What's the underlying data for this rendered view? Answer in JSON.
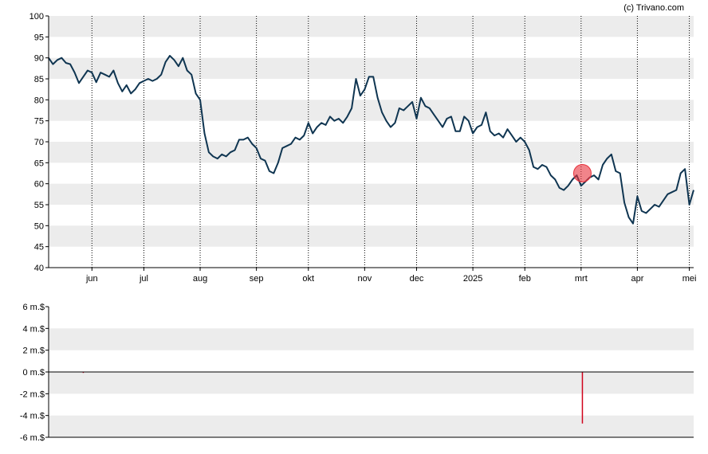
{
  "watermark": "(c) Trivano.com",
  "colors": {
    "band": "#ececec",
    "line": "#0f3551",
    "marker": "#e8323c",
    "volume_bar": "#d0021b",
    "axis": "#000000",
    "grid": "#000000"
  },
  "chart_data": [
    {
      "type": "line",
      "title": "",
      "xlabel": "",
      "ylabel": "",
      "ylim": [
        40,
        100
      ],
      "y_ticks": [
        40,
        45,
        50,
        55,
        60,
        65,
        70,
        75,
        80,
        85,
        90,
        95,
        100
      ],
      "grid": "vertical dotted at month starts, alternating horizontal bands",
      "x_ticks": [
        {
          "label": "jun",
          "t": 10
        },
        {
          "label": "jul",
          "t": 22
        },
        {
          "label": "aug",
          "t": 35
        },
        {
          "label": "sep",
          "t": 48
        },
        {
          "label": "okt",
          "t": 60
        },
        {
          "label": "nov",
          "t": 73
        },
        {
          "label": "dec",
          "t": 85
        },
        {
          "label": "2025",
          "t": 98
        },
        {
          "label": "feb",
          "t": 110
        },
        {
          "label": "mrt",
          "t": 123
        },
        {
          "label": "apr",
          "t": 136
        },
        {
          "label": "mei",
          "t": 148
        }
      ],
      "series": [
        {
          "values": [
            [
              0,
              90.0
            ],
            [
              1,
              88.5
            ],
            [
              2,
              89.5
            ],
            [
              3,
              90.0
            ],
            [
              4,
              88.8
            ],
            [
              5,
              88.5
            ],
            [
              6,
              86.5
            ],
            [
              7,
              84.0
            ],
            [
              8,
              85.5
            ],
            [
              9,
              87.0
            ],
            [
              10,
              86.5
            ],
            [
              11,
              84.2
            ],
            [
              12,
              86.5
            ],
            [
              13,
              86.0
            ],
            [
              14,
              85.5
            ],
            [
              15,
              87.0
            ],
            [
              16,
              84.0
            ],
            [
              17,
              82.0
            ],
            [
              18,
              83.5
            ],
            [
              19,
              81.5
            ],
            [
              20,
              82.5
            ],
            [
              21,
              84.0
            ],
            [
              22,
              84.5
            ],
            [
              23,
              85.0
            ],
            [
              24,
              84.5
            ],
            [
              25,
              85.0
            ],
            [
              26,
              86.0
            ],
            [
              27,
              89.0
            ],
            [
              28,
              90.5
            ],
            [
              29,
              89.5
            ],
            [
              30,
              88.0
            ],
            [
              31,
              90.0
            ],
            [
              32,
              87.0
            ],
            [
              33,
              86.0
            ],
            [
              34,
              81.5
            ],
            [
              35,
              80.0
            ],
            [
              36,
              72.0
            ],
            [
              37,
              67.5
            ],
            [
              38,
              66.5
            ],
            [
              39,
              66.0
            ],
            [
              40,
              67.0
            ],
            [
              41,
              66.5
            ],
            [
              42,
              67.5
            ],
            [
              43,
              68.0
            ],
            [
              44,
              70.5
            ],
            [
              45,
              70.5
            ],
            [
              46,
              71.0
            ],
            [
              47,
              69.5
            ],
            [
              48,
              68.5
            ],
            [
              49,
              66.0
            ],
            [
              50,
              65.5
            ],
            [
              51,
              63.0
            ],
            [
              52,
              62.5
            ],
            [
              53,
              65.0
            ],
            [
              54,
              68.5
            ],
            [
              55,
              69.0
            ],
            [
              56,
              69.5
            ],
            [
              57,
              71.0
            ],
            [
              58,
              70.5
            ],
            [
              59,
              71.5
            ],
            [
              60,
              74.5
            ],
            [
              61,
              72.0
            ],
            [
              62,
              73.5
            ],
            [
              63,
              74.5
            ],
            [
              64,
              74.0
            ],
            [
              65,
              76.0
            ],
            [
              66,
              75.0
            ],
            [
              67,
              75.5
            ],
            [
              68,
              74.5
            ],
            [
              69,
              76.0
            ],
            [
              70,
              78.0
            ],
            [
              71,
              85.0
            ],
            [
              72,
              81.0
            ],
            [
              73,
              82.5
            ],
            [
              74,
              85.5
            ],
            [
              75,
              85.5
            ],
            [
              76,
              80.5
            ],
            [
              77,
              77.0
            ],
            [
              78,
              75.0
            ],
            [
              79,
              73.5
            ],
            [
              80,
              74.5
            ],
            [
              81,
              78.0
            ],
            [
              82,
              77.5
            ],
            [
              83,
              78.5
            ],
            [
              84,
              79.5
            ],
            [
              85,
              75.5
            ],
            [
              86,
              80.5
            ],
            [
              87,
              78.5
            ],
            [
              88,
              78.0
            ],
            [
              89,
              76.5
            ],
            [
              90,
              75.0
            ],
            [
              91,
              73.5
            ],
            [
              92,
              75.5
            ],
            [
              93,
              76.0
            ],
            [
              94,
              72.5
            ],
            [
              95,
              72.5
            ],
            [
              96,
              76.0
            ],
            [
              97,
              75.0
            ],
            [
              98,
              72.0
            ],
            [
              99,
              73.5
            ],
            [
              100,
              74.0
            ],
            [
              101,
              77.0
            ],
            [
              102,
              72.5
            ],
            [
              103,
              71.5
            ],
            [
              104,
              72.0
            ],
            [
              105,
              71.0
            ],
            [
              106,
              73.0
            ],
            [
              107,
              71.5
            ],
            [
              108,
              70.0
            ],
            [
              109,
              71.0
            ],
            [
              110,
              70.0
            ],
            [
              111,
              68.0
            ],
            [
              112,
              64.0
            ],
            [
              113,
              63.5
            ],
            [
              114,
              64.5
            ],
            [
              115,
              64.0
            ],
            [
              116,
              62.0
            ],
            [
              117,
              61.0
            ],
            [
              118,
              59.0
            ],
            [
              119,
              58.5
            ],
            [
              120,
              59.5
            ],
            [
              121,
              61.0
            ],
            [
              122,
              62.0
            ],
            [
              123,
              59.5
            ],
            [
              124,
              60.5
            ],
            [
              125,
              61.5
            ],
            [
              126,
              62.0
            ],
            [
              127,
              61.0
            ],
            [
              128,
              64.5
            ],
            [
              129,
              66.0
            ],
            [
              130,
              67.0
            ],
            [
              131,
              63.0
            ],
            [
              132,
              62.5
            ],
            [
              133,
              55.5
            ],
            [
              134,
              52.0
            ],
            [
              135,
              50.5
            ],
            [
              136,
              57.0
            ],
            [
              137,
              53.5
            ],
            [
              138,
              53.0
            ],
            [
              139,
              54.0
            ],
            [
              140,
              55.0
            ],
            [
              141,
              54.5
            ],
            [
              142,
              56.0
            ],
            [
              143,
              57.5
            ],
            [
              144,
              58.0
            ],
            [
              145,
              58.5
            ],
            [
              146,
              62.5
            ],
            [
              147,
              63.5
            ],
            [
              148,
              55.0
            ],
            [
              149,
              58.5
            ]
          ]
        }
      ],
      "highlight_point": {
        "x": 123.3,
        "y": 62.5
      }
    },
    {
      "type": "bar",
      "title": "",
      "xlabel": "",
      "ylabel": "",
      "ylim": [
        -6,
        6
      ],
      "y_ticks": [
        {
          "value": 6,
          "label": "6 m.$"
        },
        {
          "value": 4,
          "label": "4 m.$"
        },
        {
          "value": 2,
          "label": "2 m.$"
        },
        {
          "value": 0,
          "label": "0 m.$"
        },
        {
          "value": -2,
          "label": "-2 m.$"
        },
        {
          "value": -4,
          "label": "-4 m.$"
        },
        {
          "value": -6,
          "label": "-6 m.$"
        }
      ],
      "bars": [
        {
          "t": 8,
          "value": -0.05
        },
        {
          "t": 123.3,
          "value": -4.7
        }
      ]
    }
  ]
}
